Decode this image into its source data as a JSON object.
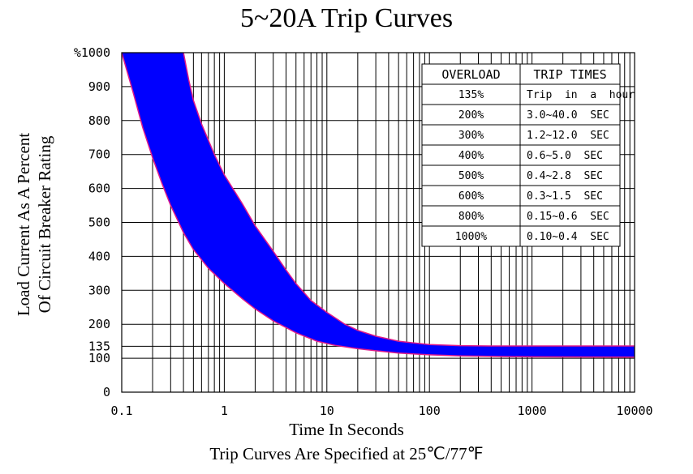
{
  "chart_data": {
    "type": "area",
    "title": "5~20A Trip  Curves",
    "xlabel": "Time In Seconds",
    "ylabel_lines": [
      "Load  Current As A Percent",
      "Of Circuit Breaker Rating"
    ],
    "footnote": "Trip Curves Are Specified at 25℃/77℉",
    "x_scale": "log",
    "xlim": [
      0.1,
      10000
    ],
    "ylim": [
      0,
      1000
    ],
    "x_tick_labels": [
      "0.1",
      "1",
      "10",
      "100",
      "1000",
      "10000"
    ],
    "y_ticks": [
      {
        "value": 0,
        "label": "0"
      },
      {
        "value": 100,
        "label": "100"
      },
      {
        "value": 135,
        "label": "135"
      },
      {
        "value": 200,
        "label": "200"
      },
      {
        "value": 300,
        "label": "300"
      },
      {
        "value": 400,
        "label": "400"
      },
      {
        "value": 500,
        "label": "500"
      },
      {
        "value": 600,
        "label": "600"
      },
      {
        "value": 700,
        "label": "700"
      },
      {
        "value": 800,
        "label": "800"
      },
      {
        "value": 900,
        "label": "900"
      },
      {
        "value": 1000,
        "label": "%1000"
      }
    ],
    "grid": true,
    "band_color": "#0000ff",
    "band_edge_color": "#e0198a",
    "band_lower": [
      [
        0.1,
        1000
      ],
      [
        0.13,
        880
      ],
      [
        0.16,
        780
      ],
      [
        0.2,
        690
      ],
      [
        0.25,
        610
      ],
      [
        0.3,
        550
      ],
      [
        0.4,
        470
      ],
      [
        0.5,
        420
      ],
      [
        0.7,
        365
      ],
      [
        1,
        320
      ],
      [
        1.5,
        275
      ],
      [
        2,
        245
      ],
      [
        3,
        210
      ],
      [
        5,
        175
      ],
      [
        8,
        150
      ],
      [
        12,
        138
      ],
      [
        20,
        128
      ],
      [
        30,
        122
      ],
      [
        50,
        115
      ],
      [
        100,
        110
      ],
      [
        200,
        107
      ],
      [
        500,
        105
      ],
      [
        1000,
        104
      ],
      [
        10000,
        103
      ]
    ],
    "band_upper": [
      [
        0.4,
        1000
      ],
      [
        0.45,
        920
      ],
      [
        0.5,
        860
      ],
      [
        0.6,
        790
      ],
      [
        0.8,
        700
      ],
      [
        1,
        640
      ],
      [
        1.5,
        555
      ],
      [
        2,
        490
      ],
      [
        3,
        415
      ],
      [
        4,
        360
      ],
      [
        5,
        320
      ],
      [
        7,
        270
      ],
      [
        10,
        235
      ],
      [
        15,
        200
      ],
      [
        20,
        182
      ],
      [
        30,
        165
      ],
      [
        50,
        150
      ],
      [
        100,
        140
      ],
      [
        200,
        137
      ],
      [
        400,
        136
      ],
      [
        1000,
        136
      ],
      [
        10000,
        136
      ]
    ],
    "table": {
      "headers": [
        "OVERLOAD",
        "TRIP  TIMES"
      ],
      "rows": [
        [
          "135%",
          "Trip  in  a  hour"
        ],
        [
          "200%",
          "3.0~40.0  SEC"
        ],
        [
          "300%",
          "1.2~12.0  SEC"
        ],
        [
          "400%",
          "0.6~5.0  SEC"
        ],
        [
          "500%",
          "0.4~2.8  SEC"
        ],
        [
          "600%",
          "0.3~1.5  SEC"
        ],
        [
          "800%",
          "0.15~0.6  SEC"
        ],
        [
          "1000%",
          "0.10~0.4  SEC"
        ]
      ]
    }
  }
}
